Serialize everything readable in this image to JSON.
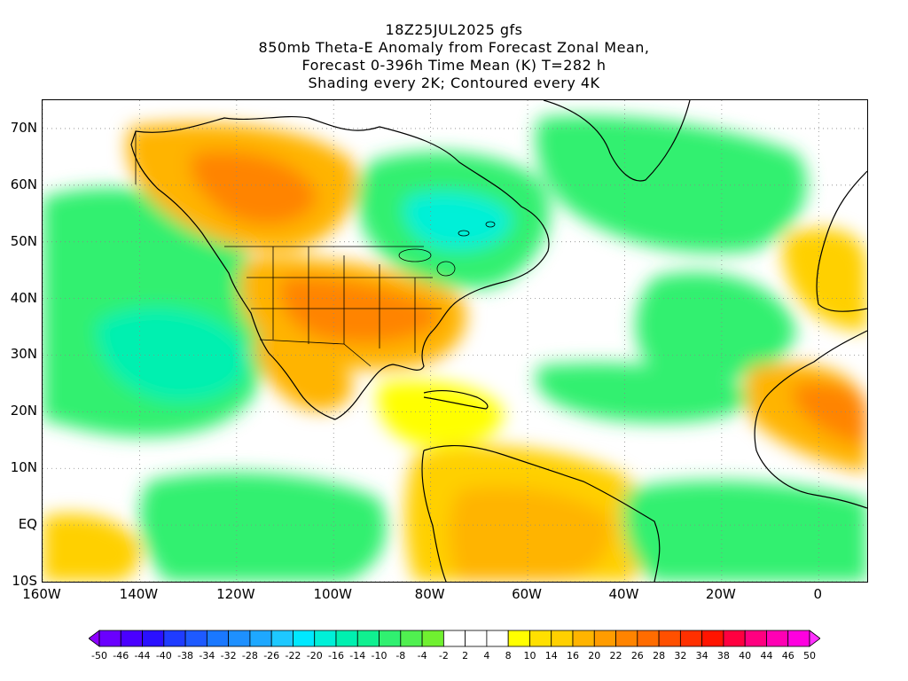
{
  "header": {
    "line1": "18Z25JUL2025 gfs",
    "line2": "850mb Theta-E Anomaly from Forecast Zonal Mean,",
    "line3": "Forecast 0-396h Time Mean (K) T=282 h",
    "line4": "Shading every 2K; Contoured every 4K"
  },
  "map": {
    "lat_labels": [
      "70N",
      "60N",
      "50N",
      "40N",
      "30N",
      "20N",
      "10N",
      "EQ",
      "10S"
    ],
    "lon_labels": [
      "160W",
      "140W",
      "120W",
      "100W",
      "80W",
      "60W",
      "40W",
      "20W",
      "0"
    ],
    "lat_values": [
      70,
      60,
      50,
      40,
      30,
      20,
      10,
      0,
      -10
    ],
    "lon_values": [
      -160,
      -140,
      -120,
      -100,
      -80,
      -60,
      -40,
      -20,
      0
    ],
    "lat_range": [
      -10,
      75
    ],
    "lon_range": [
      -160,
      10
    ],
    "gridlines": "dotted",
    "shading": [
      {
        "region": "eastern-pacific-ocean",
        "anomaly_K": -14
      },
      {
        "region": "central-and-eastern-united-states",
        "anomaly_K": 16
      },
      {
        "region": "hudson-bay-and-eastern-canada",
        "anomaly_K": -16
      },
      {
        "region": "western-canada-and-alaska-interior",
        "anomaly_K": 16
      },
      {
        "region": "mexico",
        "anomaly_K": 16
      },
      {
        "region": "central-north-atlantic",
        "anomaly_K": -8
      },
      {
        "region": "greenland-coast",
        "anomaly_K": -8
      },
      {
        "region": "caribbean",
        "anomaly_K": 4
      },
      {
        "region": "northern-south-america",
        "anomaly_K": 14
      },
      {
        "region": "west-africa-sahel",
        "anomaly_K": 20
      },
      {
        "region": "equatorial-atlantic",
        "anomaly_K": -10
      },
      {
        "region": "southeastern-pacific",
        "anomaly_K": -10
      }
    ]
  },
  "colorbar": {
    "labels": [
      "-50",
      "-46",
      "-44",
      "-40",
      "-38",
      "-34",
      "-32",
      "-28",
      "-26",
      "-22",
      "-20",
      "-16",
      "-14",
      "-10",
      "-8",
      "-4",
      "-2",
      "2",
      "4",
      "8",
      "10",
      "14",
      "16",
      "20",
      "22",
      "26",
      "28",
      "32",
      "34",
      "38",
      "40",
      "44",
      "46",
      "50"
    ],
    "colors": [
      "#8c00ff",
      "#6a00ff",
      "#4a00ff",
      "#2a10ff",
      "#1f3cff",
      "#1e5aff",
      "#1a78ff",
      "#1e90ff",
      "#1ea8ff",
      "#1ec8ff",
      "#00e8ff",
      "#00f0d8",
      "#00f0b0",
      "#10f090",
      "#30f070",
      "#50f050",
      "#70f030",
      "#ffffff",
      "#ffffff",
      "#ffffff",
      "#ffff00",
      "#ffe000",
      "#ffd000",
      "#ffb400",
      "#ff9c00",
      "#ff8400",
      "#ff6c00",
      "#ff5000",
      "#ff3000",
      "#ff1400",
      "#ff0040",
      "#ff0080",
      "#ff00b4",
      "#ff00e0",
      "#ff30ff"
    ]
  }
}
